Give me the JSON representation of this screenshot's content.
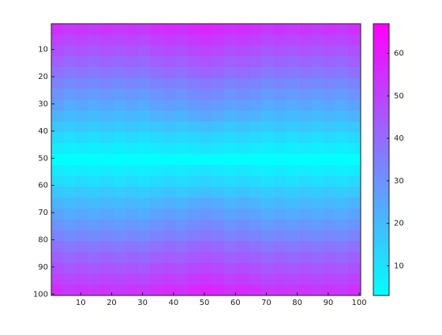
{
  "chart_data": {
    "type": "heatmap",
    "colormap": "cool",
    "clim": [
      3,
      67
    ],
    "xlim": [
      0.5,
      100.5
    ],
    "ylim": [
      0.5,
      100.5
    ],
    "xticks": [
      10,
      20,
      30,
      40,
      50,
      60,
      70,
      80,
      90,
      100
    ],
    "yticks": [
      10,
      20,
      30,
      40,
      50,
      60,
      70,
      80,
      90,
      100
    ],
    "colorbar_ticks": [
      10,
      20,
      30,
      40,
      50,
      60
    ],
    "values": [
      [
        55,
        53,
        54,
        53,
        54,
        53,
        54,
        53,
        55,
        56,
        55,
        57,
        58,
        57,
        55,
        56,
        55,
        53,
        54,
        53,
        54,
        53,
        54,
        53,
        55
      ],
      [
        51,
        49,
        50,
        49,
        50,
        49,
        50,
        49,
        51,
        52,
        51,
        53,
        54,
        53,
        51,
        52,
        51,
        49,
        50,
        49,
        50,
        49,
        50,
        49,
        51
      ],
      [
        47,
        45,
        46,
        45,
        46,
        45,
        46,
        45,
        47,
        48,
        47,
        49,
        50,
        49,
        47,
        48,
        47,
        45,
        46,
        45,
        46,
        45,
        46,
        45,
        47
      ],
      [
        43,
        41,
        42,
        41,
        42,
        41,
        42,
        41,
        43,
        44,
        43,
        45,
        46,
        45,
        43,
        44,
        43,
        41,
        42,
        41,
        42,
        41,
        42,
        41,
        43
      ],
      [
        39,
        37,
        38,
        37,
        38,
        37,
        38,
        37,
        39,
        40,
        39,
        41,
        42,
        41,
        39,
        40,
        39,
        37,
        38,
        37,
        38,
        37,
        38,
        37,
        39
      ],
      [
        34,
        32,
        33,
        32,
        33,
        32,
        33,
        32,
        34,
        35,
        34,
        36,
        37,
        36,
        34,
        35,
        34,
        32,
        33,
        32,
        33,
        32,
        33,
        32,
        34
      ],
      [
        30,
        28,
        29,
        28,
        29,
        28,
        29,
        28,
        30,
        31,
        30,
        32,
        33,
        32,
        30,
        31,
        30,
        28,
        29,
        28,
        29,
        28,
        29,
        28,
        30
      ],
      [
        26,
        24,
        25,
        24,
        25,
        24,
        25,
        24,
        26,
        27,
        26,
        28,
        29,
        28,
        26,
        27,
        26,
        24,
        25,
        24,
        25,
        24,
        25,
        24,
        26
      ],
      [
        22,
        20,
        21,
        20,
        21,
        20,
        21,
        20,
        22,
        23,
        22,
        24,
        25,
        24,
        22,
        23,
        22,
        20,
        21,
        20,
        21,
        20,
        21,
        20,
        22
      ],
      [
        17,
        16,
        17,
        16,
        17,
        16,
        17,
        16,
        17,
        18,
        17,
        18,
        19,
        18,
        17,
        18,
        17,
        16,
        17,
        16,
        17,
        16,
        17,
        16,
        17
      ],
      [
        12,
        11,
        12,
        11,
        12,
        11,
        12,
        11,
        12,
        13,
        12,
        13,
        14,
        13,
        12,
        13,
        12,
        11,
        12,
        11,
        12,
        11,
        12,
        11,
        12
      ],
      [
        8,
        7,
        8,
        7,
        8,
        7,
        8,
        7,
        8,
        9,
        8,
        9,
        10,
        9,
        8,
        9,
        8,
        7,
        8,
        7,
        8,
        7,
        8,
        7,
        8
      ],
      [
        3,
        3,
        3,
        3,
        3,
        3,
        3,
        3,
        3,
        3,
        3,
        3,
        3,
        3,
        3,
        3,
        3,
        3,
        3,
        3,
        3,
        3,
        3,
        3,
        3
      ],
      [
        8,
        7,
        8,
        7,
        8,
        7,
        8,
        7,
        8,
        9,
        8,
        9,
        10,
        9,
        8,
        9,
        8,
        7,
        8,
        7,
        8,
        7,
        8,
        7,
        8
      ],
      [
        12,
        11,
        12,
        11,
        12,
        11,
        12,
        11,
        12,
        13,
        12,
        13,
        14,
        13,
        12,
        13,
        12,
        11,
        12,
        11,
        12,
        11,
        12,
        11,
        12
      ],
      [
        17,
        16,
        17,
        16,
        17,
        16,
        17,
        16,
        17,
        18,
        17,
        18,
        19,
        18,
        17,
        18,
        17,
        16,
        17,
        16,
        17,
        16,
        17,
        16,
        17
      ],
      [
        22,
        20,
        21,
        20,
        21,
        20,
        21,
        20,
        22,
        23,
        22,
        24,
        25,
        24,
        22,
        23,
        22,
        20,
        21,
        20,
        21,
        20,
        21,
        20,
        22
      ],
      [
        26,
        24,
        25,
        24,
        25,
        24,
        25,
        24,
        26,
        27,
        26,
        28,
        29,
        28,
        26,
        27,
        26,
        24,
        25,
        24,
        25,
        24,
        25,
        24,
        26
      ],
      [
        30,
        28,
        29,
        28,
        29,
        28,
        29,
        28,
        30,
        31,
        30,
        32,
        33,
        32,
        30,
        31,
        30,
        28,
        29,
        28,
        29,
        28,
        29,
        28,
        30
      ],
      [
        34,
        32,
        33,
        32,
        33,
        32,
        33,
        32,
        34,
        35,
        34,
        36,
        37,
        36,
        34,
        35,
        34,
        32,
        33,
        32,
        33,
        32,
        33,
        32,
        34
      ],
      [
        39,
        37,
        38,
        37,
        38,
        37,
        38,
        37,
        39,
        40,
        39,
        41,
        42,
        41,
        39,
        40,
        39,
        37,
        38,
        37,
        38,
        37,
        38,
        37,
        39
      ],
      [
        43,
        41,
        42,
        41,
        42,
        41,
        42,
        41,
        43,
        44,
        43,
        45,
        46,
        45,
        43,
        44,
        43,
        41,
        42,
        41,
        42,
        41,
        42,
        41,
        43
      ],
      [
        47,
        45,
        46,
        45,
        46,
        45,
        46,
        45,
        47,
        48,
        47,
        49,
        50,
        49,
        47,
        48,
        47,
        45,
        46,
        45,
        46,
        45,
        46,
        45,
        47
      ],
      [
        51,
        49,
        50,
        49,
        50,
        49,
        50,
        49,
        51,
        52,
        51,
        53,
        54,
        53,
        51,
        52,
        51,
        49,
        50,
        49,
        50,
        49,
        50,
        49,
        51
      ],
      [
        55,
        53,
        54,
        53,
        54,
        53,
        54,
        53,
        55,
        56,
        55,
        57,
        58,
        57,
        55,
        56,
        55,
        53,
        54,
        53,
        54,
        53,
        54,
        53,
        55
      ]
    ]
  }
}
